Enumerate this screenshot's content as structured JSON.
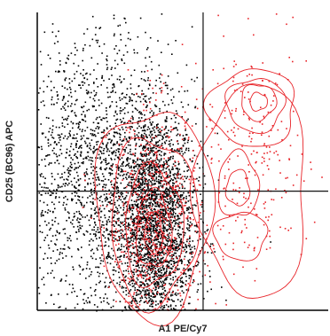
{
  "chart_data": {
    "type": "scatter",
    "title": "",
    "xlabel": "A1 PE/Cy7",
    "ylabel": "CD25 (BC96) APC",
    "xlim": [
      0,
      100
    ],
    "ylim": [
      0,
      100
    ],
    "grid": false,
    "legend": "none",
    "gates": {
      "x": 57,
      "y": 40
    },
    "series": [
      {
        "kind": "dots",
        "color": "#000000",
        "clusters": [
          {
            "cx": 40,
            "cy": 28,
            "sx": 7,
            "sy": 20,
            "n": 2600
          },
          {
            "cx": 20,
            "cy": 45,
            "sx": 14,
            "sy": 24,
            "n": 1800
          }
        ]
      },
      {
        "kind": "dots",
        "color": "#e8252a",
        "clusters": [
          {
            "cx": 40,
            "cy": 30,
            "sx": 8,
            "sy": 18,
            "n": 700
          },
          {
            "cx": 73,
            "cy": 50,
            "sx": 10,
            "sy": 20,
            "n": 250
          }
        ]
      },
      {
        "kind": "contours",
        "color": "#e8252a",
        "levels": [
          {
            "cx": 40,
            "cy": 33,
            "rx": 20,
            "ry": 35
          },
          {
            "cx": 40,
            "cy": 30,
            "rx": 15,
            "ry": 28
          },
          {
            "cx": 40,
            "cy": 28,
            "rx": 10,
            "ry": 20
          },
          {
            "cx": 40,
            "cy": 27,
            "rx": 6,
            "ry": 13
          },
          {
            "cx": 40,
            "cy": 26,
            "rx": 3,
            "ry": 7
          },
          {
            "cx": 74,
            "cy": 68,
            "rx": 15,
            "ry": 13
          },
          {
            "cx": 75,
            "cy": 69,
            "rx": 10,
            "ry": 9
          },
          {
            "cx": 76,
            "cy": 70,
            "rx": 6,
            "ry": 6
          },
          {
            "cx": 76,
            "cy": 70,
            "rx": 3,
            "ry": 3
          },
          {
            "cx": 69,
            "cy": 42,
            "rx": 7,
            "ry": 11
          },
          {
            "cx": 69,
            "cy": 41,
            "rx": 4,
            "ry": 6
          },
          {
            "cx": 74,
            "cy": 40,
            "rx": 19,
            "ry": 36
          },
          {
            "cx": 70,
            "cy": 25,
            "rx": 9,
            "ry": 8
          }
        ]
      }
    ]
  }
}
